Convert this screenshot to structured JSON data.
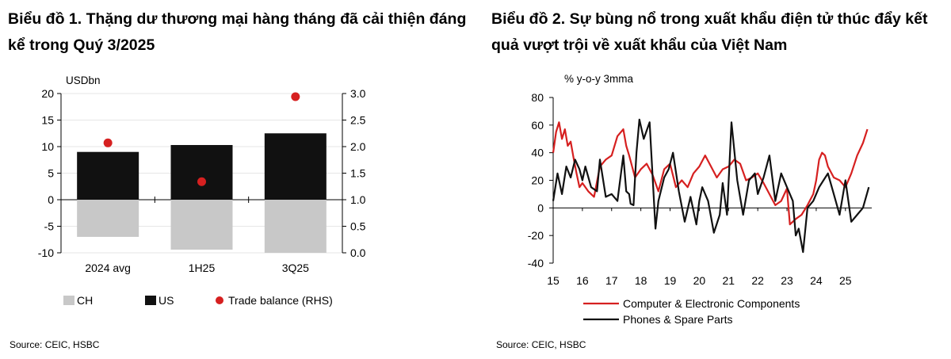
{
  "panels": [
    {
      "title": "Biểu đồ 1. Thặng dư thương mại hàng tháng đã cải thiện đáng kể trong Quý 3/2025",
      "source": "Source: CEIC, HSBC"
    },
    {
      "title": "Biểu đồ 2. Sự bùng nổ trong xuất khẩu điện tử thúc đẩy kết quả vượt trội về xuất khẩu của Việt Nam",
      "source": "Source: CEIC, HSBC"
    }
  ],
  "chart_data": [
    {
      "type": "bar",
      "title": "",
      "ylabel": "USDbn",
      "ylim": [
        -10,
        20
      ],
      "yticks": [
        "20",
        "15",
        "10",
        "5",
        "0",
        "-5",
        "-10"
      ],
      "y2lim": [
        0,
        3
      ],
      "y2ticks": [
        "3.0",
        "2.5",
        "2.0",
        "1.5",
        "1.0",
        "0.5",
        "0.0"
      ],
      "categories": [
        "2024 avg",
        "1H25",
        "3Q25"
      ],
      "series": [
        {
          "name": "CH",
          "kind": "bar",
          "color": "#c8c8c8",
          "values": [
            -7,
            -9.4,
            -10
          ]
        },
        {
          "name": "US",
          "kind": "bar",
          "color": "#111111",
          "values": [
            9,
            10.3,
            12.5
          ]
        },
        {
          "name": "Trade balance (RHS)",
          "kind": "point",
          "axis": "right",
          "color": "#d62020",
          "values": [
            2.07,
            1.34,
            2.94
          ]
        }
      ],
      "grid": true,
      "legend_position": "bottom"
    },
    {
      "type": "line",
      "title": "",
      "ylabel": "% y-o-y 3mma",
      "ylim": [
        -40,
        80
      ],
      "yticks": [
        "80",
        "60",
        "40",
        "20",
        "0",
        "-20",
        "-40"
      ],
      "xlim": [
        2015,
        2025.9
      ],
      "xticks": [
        "15",
        "16",
        "17",
        "18",
        "19",
        "20",
        "21",
        "22",
        "23",
        "24",
        "25"
      ],
      "series": [
        {
          "name": "Computer & Electronic Components",
          "color": "#d62020",
          "x": [
            2015.0,
            2015.1,
            2015.2,
            2015.3,
            2015.4,
            2015.5,
            2015.6,
            2015.7,
            2015.8,
            2015.9,
            2016.0,
            2016.2,
            2016.4,
            2016.6,
            2016.8,
            2017.0,
            2017.2,
            2017.4,
            2017.5,
            2017.6,
            2017.7,
            2017.8,
            2018.0,
            2018.2,
            2018.4,
            2018.6,
            2018.8,
            2019.0,
            2019.2,
            2019.4,
            2019.6,
            2019.8,
            2020.0,
            2020.2,
            2020.4,
            2020.6,
            2020.8,
            2021.0,
            2021.2,
            2021.4,
            2021.6,
            2021.8,
            2022.0,
            2022.2,
            2022.4,
            2022.6,
            2022.8,
            2023.0,
            2023.1,
            2023.3,
            2023.5,
            2023.7,
            2023.9,
            2024.0,
            2024.1,
            2024.2,
            2024.3,
            2024.4,
            2024.6,
            2024.8,
            2025.0,
            2025.2,
            2025.4,
            2025.6,
            2025.75
          ],
          "y": [
            40,
            55,
            62,
            50,
            57,
            45,
            48,
            36,
            25,
            15,
            18,
            12,
            8,
            30,
            35,
            38,
            52,
            57,
            45,
            38,
            30,
            22,
            28,
            32,
            24,
            12,
            28,
            32,
            15,
            20,
            15,
            25,
            30,
            38,
            30,
            22,
            28,
            30,
            35,
            32,
            20,
            22,
            25,
            18,
            10,
            2,
            5,
            14,
            -12,
            -8,
            -5,
            2,
            10,
            20,
            35,
            40,
            38,
            30,
            22,
            20,
            15,
            25,
            38,
            47,
            57
          ]
        },
        {
          "name": "Phones & Spare Parts",
          "color": "#111111",
          "x": [
            2015.0,
            2015.15,
            2015.3,
            2015.45,
            2015.6,
            2015.75,
            2015.9,
            2016.0,
            2016.1,
            2016.3,
            2016.5,
            2016.6,
            2016.8,
            2017.0,
            2017.2,
            2017.4,
            2017.5,
            2017.6,
            2017.65,
            2017.75,
            2017.85,
            2017.95,
            2018.1,
            2018.3,
            2018.5,
            2018.6,
            2018.8,
            2018.95,
            2019.1,
            2019.3,
            2019.5,
            2019.7,
            2019.9,
            2020.0,
            2020.1,
            2020.3,
            2020.5,
            2020.7,
            2020.8,
            2020.95,
            2021.1,
            2021.3,
            2021.5,
            2021.7,
            2021.9,
            2022.0,
            2022.2,
            2022.4,
            2022.6,
            2022.8,
            2023.0,
            2023.2,
            2023.3,
            2023.4,
            2023.55,
            2023.7,
            2023.9,
            2024.0,
            2024.1,
            2024.25,
            2024.4,
            2024.6,
            2024.8,
            2025.0,
            2025.2,
            2025.4,
            2025.6,
            2025.8
          ],
          "y": [
            5,
            25,
            10,
            30,
            22,
            35,
            28,
            20,
            30,
            15,
            12,
            35,
            8,
            10,
            5,
            38,
            12,
            10,
            3,
            2,
            40,
            64,
            50,
            62,
            -15,
            5,
            22,
            28,
            40,
            12,
            -10,
            8,
            -12,
            5,
            15,
            5,
            -18,
            -5,
            18,
            -5,
            62,
            20,
            -5,
            20,
            25,
            10,
            22,
            38,
            5,
            25,
            15,
            5,
            -20,
            -15,
            -32,
            0,
            5,
            10,
            15,
            20,
            25,
            10,
            -5,
            20,
            -10,
            -5,
            0,
            15
          ]
        }
      ],
      "grid": false,
      "legend_position": "bottom-left"
    }
  ]
}
